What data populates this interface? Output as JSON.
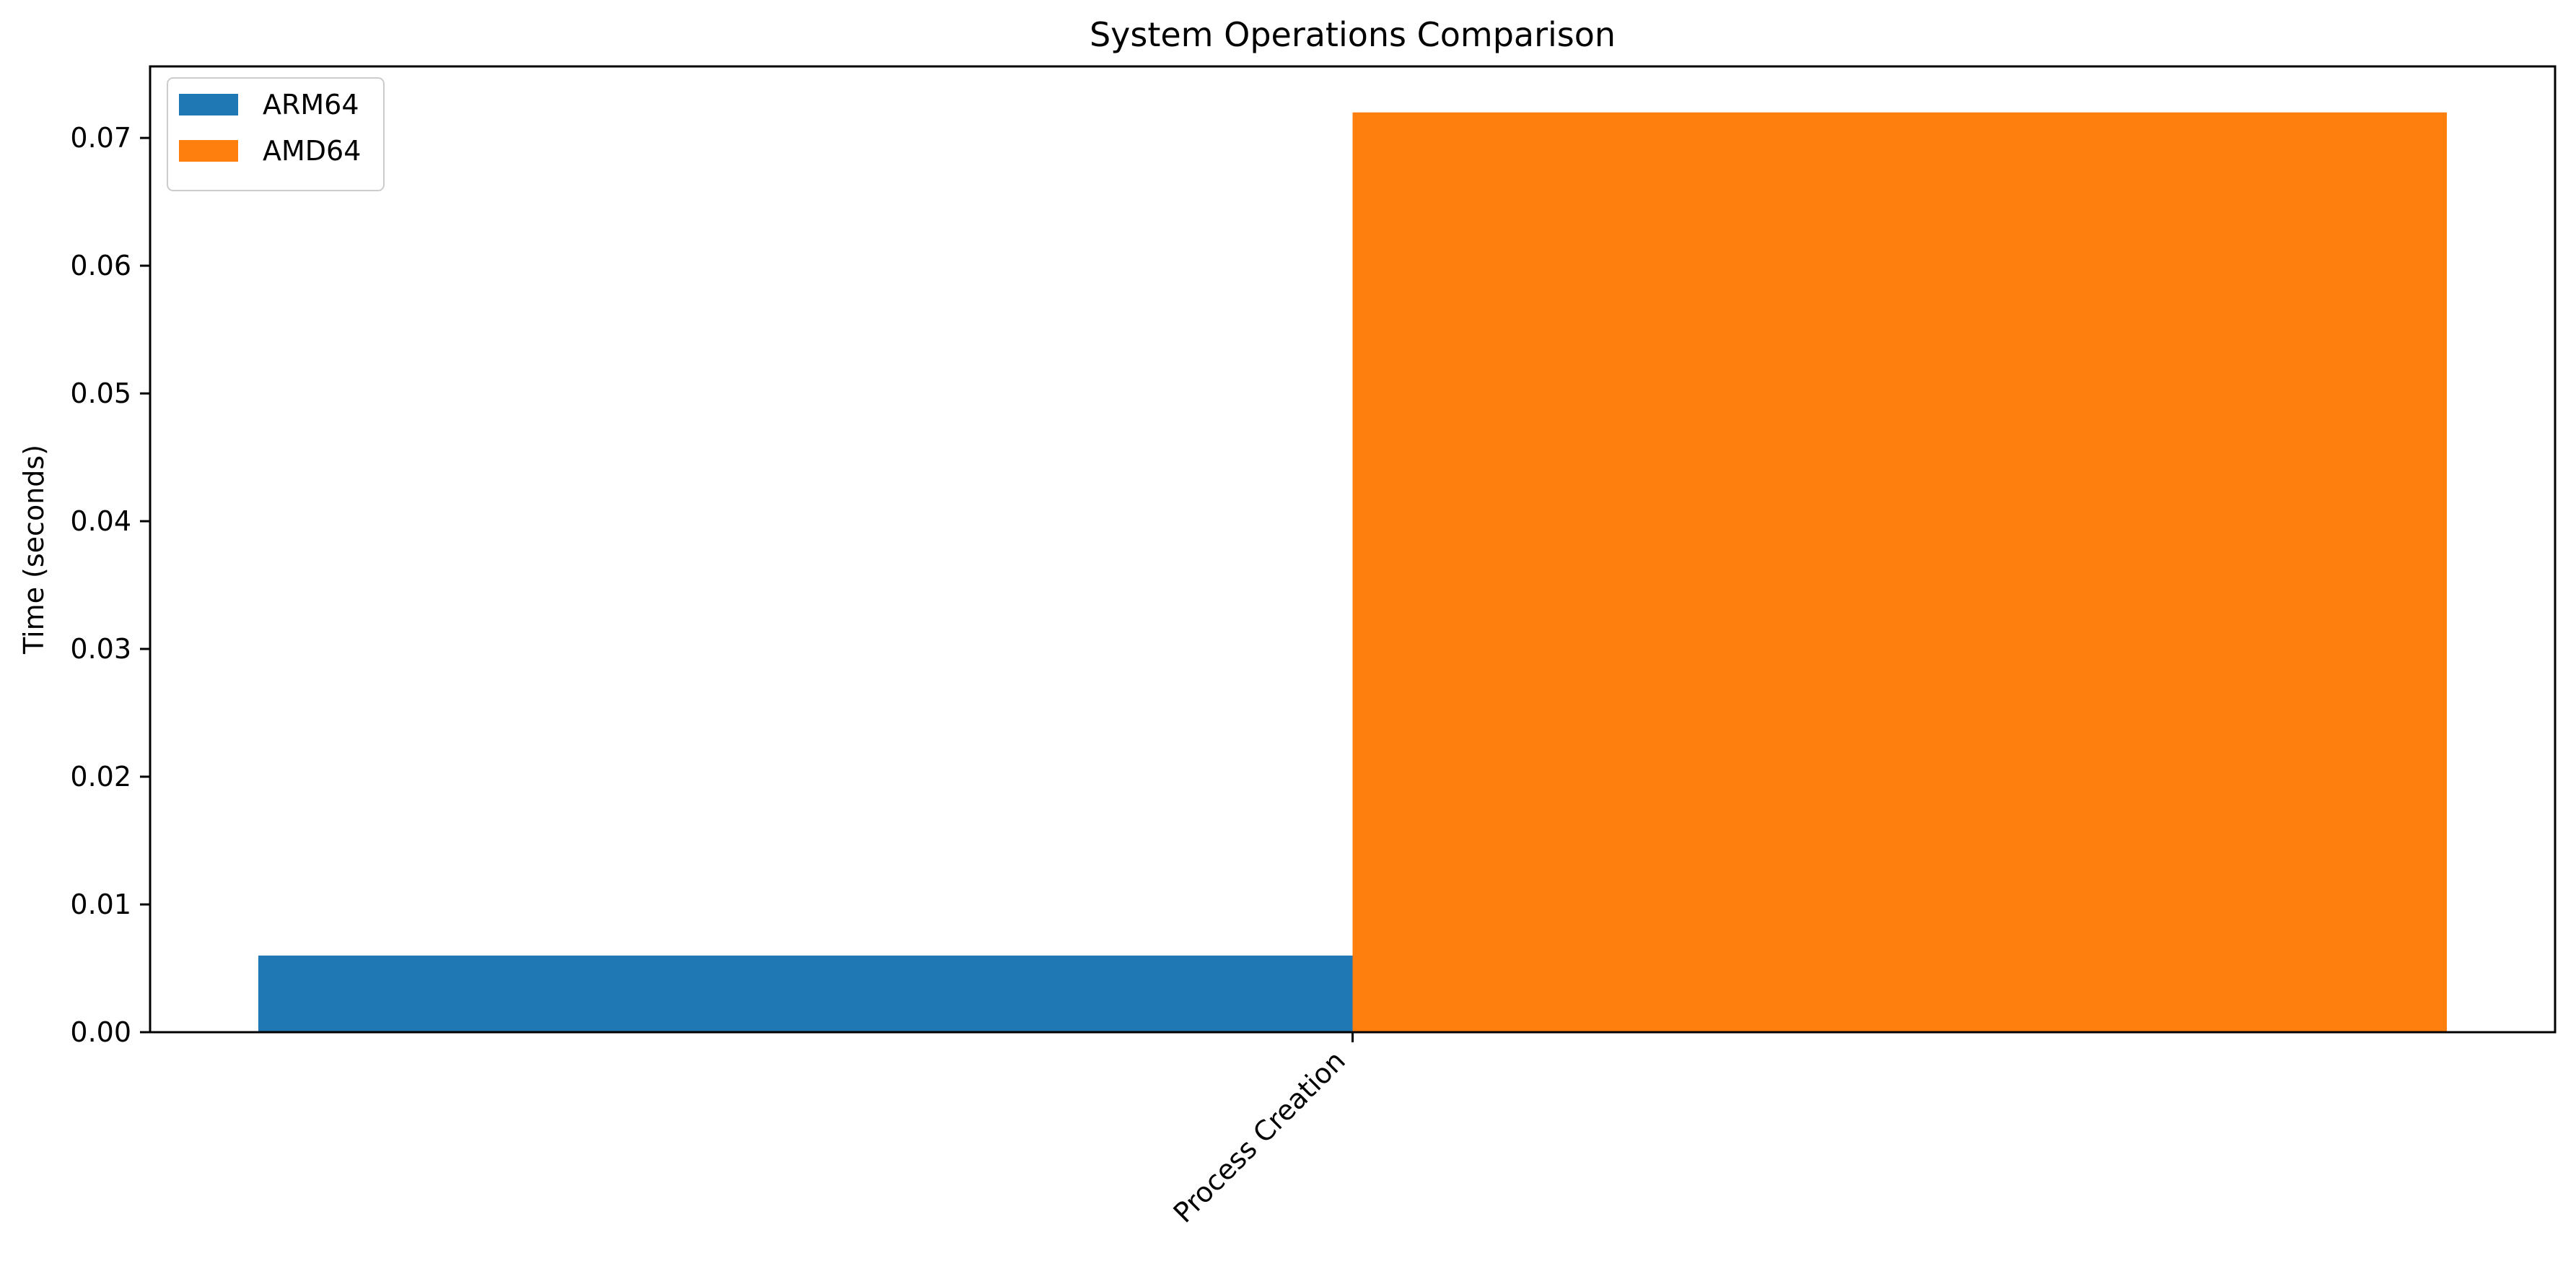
{
  "chart_data": {
    "type": "bar",
    "title": "System Operations Comparison",
    "xlabel": "",
    "ylabel": "Time (seconds)",
    "categories": [
      "Process Creation"
    ],
    "series": [
      {
        "name": "ARM64",
        "values": [
          0.006
        ],
        "color": "#1f77b4"
      },
      {
        "name": "AMD64",
        "values": [
          0.072
        ],
        "color": "#ff7f0e"
      }
    ],
    "ylim": [
      0,
      0.0756
    ],
    "yticks": [
      0.0,
      0.01,
      0.02,
      0.03,
      0.04,
      0.05,
      0.06,
      0.07
    ],
    "ytick_labels": [
      "0.00",
      "0.01",
      "0.02",
      "0.03",
      "0.04",
      "0.05",
      "0.06",
      "0.07"
    ],
    "legend_position": "upper-left",
    "grid": false
  }
}
